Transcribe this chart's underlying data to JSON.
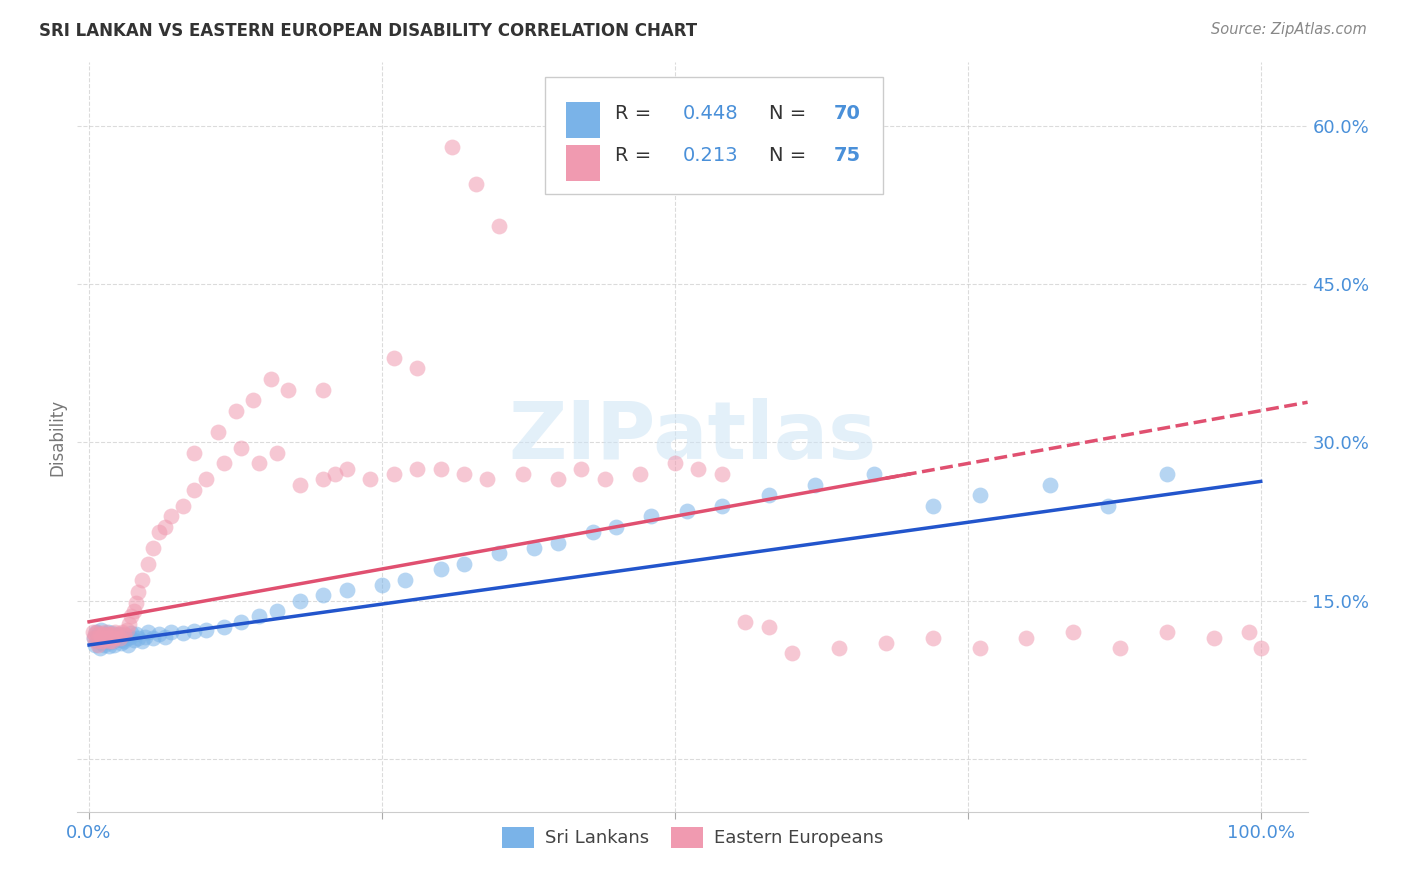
{
  "title": "SRI LANKAN VS EASTERN EUROPEAN DISABILITY CORRELATION CHART",
  "source": "Source: ZipAtlas.com",
  "ylabel": "Disability",
  "watermark": "ZIPatlas",
  "legend_sl": {
    "R": 0.448,
    "N": 70
  },
  "legend_ee": {
    "R": 0.213,
    "N": 75
  },
  "yticks": [
    0.0,
    0.15,
    0.3,
    0.45,
    0.6
  ],
  "ytick_labels": [
    "",
    "15.0%",
    "30.0%",
    "45.0%",
    "60.0%"
  ],
  "xlim": [
    -0.01,
    1.04
  ],
  "ylim": [
    -0.05,
    0.66
  ],
  "blue_scatter": "#7ab3e8",
  "pink_scatter": "#f09ab0",
  "blue_line": "#2255cc",
  "pink_line": "#e05070",
  "axis_color": "#4a90d9",
  "title_color": "#333333",
  "source_color": "#888888",
  "bg_color": "#ffffff",
  "grid_color": "#cccccc",
  "scatter_alpha": 0.55,
  "scatter_size": 130,
  "sl_x": [
    0.004,
    0.005,
    0.006,
    0.007,
    0.008,
    0.009,
    0.01,
    0.011,
    0.012,
    0.013,
    0.014,
    0.015,
    0.016,
    0.017,
    0.018,
    0.019,
    0.02,
    0.021,
    0.022,
    0.023,
    0.025,
    0.026,
    0.027,
    0.028,
    0.03,
    0.031,
    0.032,
    0.033,
    0.035,
    0.036,
    0.038,
    0.04,
    0.042,
    0.045,
    0.048,
    0.05,
    0.055,
    0.06,
    0.065,
    0.07,
    0.08,
    0.09,
    0.1,
    0.115,
    0.13,
    0.145,
    0.16,
    0.18,
    0.2,
    0.22,
    0.25,
    0.27,
    0.3,
    0.32,
    0.35,
    0.38,
    0.4,
    0.43,
    0.45,
    0.48,
    0.51,
    0.54,
    0.58,
    0.62,
    0.67,
    0.72,
    0.76,
    0.82,
    0.87,
    0.92
  ],
  "sl_y": [
    0.115,
    0.108,
    0.12,
    0.112,
    0.118,
    0.105,
    0.122,
    0.11,
    0.115,
    0.108,
    0.118,
    0.113,
    0.12,
    0.107,
    0.116,
    0.111,
    0.119,
    0.108,
    0.117,
    0.113,
    0.115,
    0.118,
    0.11,
    0.113,
    0.112,
    0.117,
    0.115,
    0.108,
    0.116,
    0.119,
    0.113,
    0.118,
    0.115,
    0.112,
    0.116,
    0.12,
    0.115,
    0.118,
    0.116,
    0.12,
    0.119,
    0.121,
    0.122,
    0.125,
    0.13,
    0.135,
    0.14,
    0.15,
    0.155,
    0.16,
    0.165,
    0.17,
    0.18,
    0.185,
    0.195,
    0.2,
    0.205,
    0.215,
    0.22,
    0.23,
    0.235,
    0.24,
    0.25,
    0.26,
    0.27,
    0.24,
    0.25,
    0.26,
    0.24,
    0.27
  ],
  "ee_x": [
    0.003,
    0.004,
    0.005,
    0.006,
    0.007,
    0.008,
    0.009,
    0.01,
    0.011,
    0.012,
    0.013,
    0.014,
    0.015,
    0.016,
    0.017,
    0.018,
    0.019,
    0.02,
    0.021,
    0.022,
    0.024,
    0.026,
    0.028,
    0.03,
    0.032,
    0.034,
    0.036,
    0.038,
    0.04,
    0.042,
    0.045,
    0.05,
    0.055,
    0.06,
    0.065,
    0.07,
    0.08,
    0.09,
    0.1,
    0.115,
    0.13,
    0.145,
    0.16,
    0.18,
    0.2,
    0.21,
    0.22,
    0.24,
    0.26,
    0.28,
    0.3,
    0.32,
    0.34,
    0.37,
    0.4,
    0.42,
    0.44,
    0.47,
    0.5,
    0.52,
    0.54,
    0.56,
    0.58,
    0.6,
    0.64,
    0.68,
    0.72,
    0.76,
    0.8,
    0.84,
    0.88,
    0.92,
    0.96,
    0.99,
    1.0
  ],
  "ee_y": [
    0.12,
    0.115,
    0.118,
    0.112,
    0.12,
    0.108,
    0.118,
    0.116,
    0.112,
    0.118,
    0.114,
    0.12,
    0.115,
    0.118,
    0.112,
    0.116,
    0.118,
    0.112,
    0.115,
    0.12,
    0.118,
    0.115,
    0.12,
    0.118,
    0.122,
    0.128,
    0.135,
    0.14,
    0.148,
    0.158,
    0.17,
    0.185,
    0.2,
    0.215,
    0.22,
    0.23,
    0.24,
    0.255,
    0.265,
    0.28,
    0.295,
    0.28,
    0.29,
    0.26,
    0.265,
    0.27,
    0.275,
    0.265,
    0.27,
    0.275,
    0.275,
    0.27,
    0.265,
    0.27,
    0.265,
    0.275,
    0.265,
    0.27,
    0.28,
    0.275,
    0.27,
    0.13,
    0.125,
    0.1,
    0.105,
    0.11,
    0.115,
    0.105,
    0.115,
    0.12,
    0.105,
    0.12,
    0.115,
    0.12,
    0.105
  ],
  "ee_outliers_x": [
    0.2,
    0.26,
    0.28,
    0.31,
    0.33,
    0.35
  ],
  "ee_outliers_y": [
    0.35,
    0.38,
    0.37,
    0.58,
    0.545,
    0.505
  ],
  "ee_mid_x": [
    0.09,
    0.11,
    0.125,
    0.14,
    0.155,
    0.17
  ],
  "ee_mid_y": [
    0.29,
    0.31,
    0.33,
    0.34,
    0.36,
    0.35
  ]
}
